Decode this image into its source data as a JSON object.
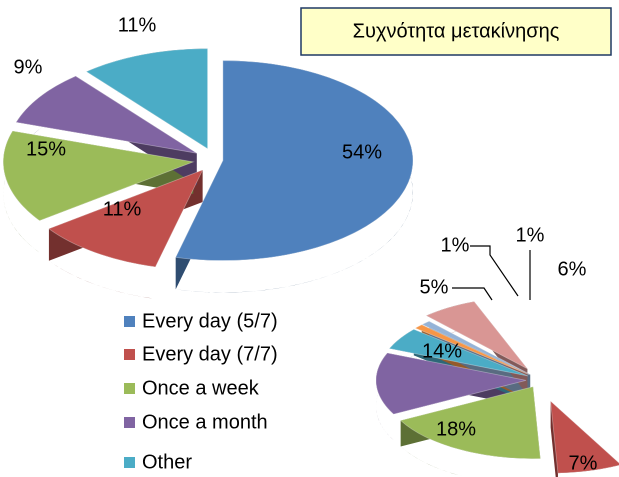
{
  "chart_data": [
    {
      "type": "pie",
      "title": "Συχνότητα μετακίνησης",
      "categories": [
        "Every day (5/7)",
        "Every day (7/7)",
        "Once a week",
        "Once a month",
        "Other"
      ],
      "values": [
        54,
        11,
        15,
        9,
        11
      ],
      "value_labels": [
        "54%",
        "11%",
        "15%",
        "9%",
        "11%"
      ],
      "colors": [
        "#4f81bd",
        "#c0504d",
        "#9bbb59",
        "#8064a2",
        "#4bacc6"
      ],
      "legend": "bottom"
    },
    {
      "type": "pie",
      "values": [
        7,
        18,
        14,
        5,
        1,
        1,
        6
      ],
      "value_labels": [
        "7%",
        "18%",
        "14%",
        "5%",
        "1%",
        "1%",
        "6%"
      ],
      "colors": [
        "#c0504d",
        "#9bbb59",
        "#8064a2",
        "#4bacc6",
        "#f79646",
        "#95b3d7",
        "#d99694"
      ]
    }
  ]
}
